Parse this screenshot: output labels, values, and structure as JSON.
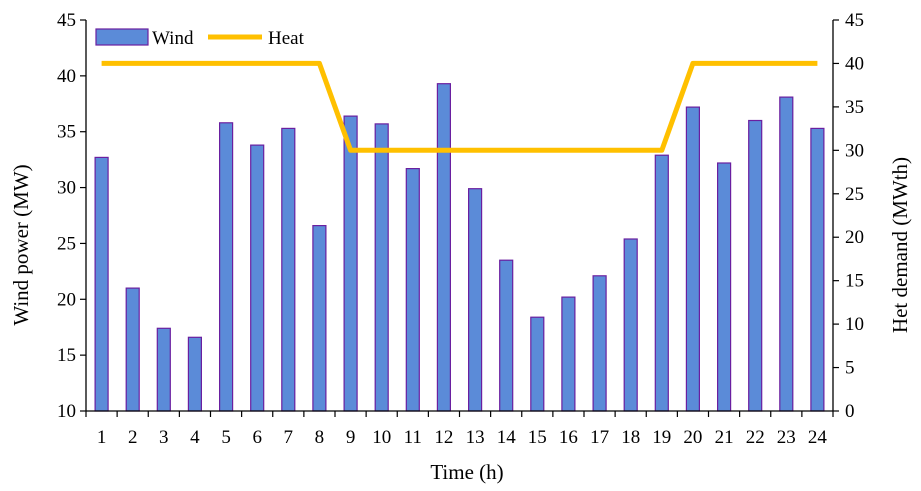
{
  "chart_data": {
    "type": "bar",
    "categories": [
      "1",
      "2",
      "3",
      "4",
      "5",
      "6",
      "7",
      "8",
      "9",
      "10",
      "11",
      "12",
      "13",
      "14",
      "15",
      "16",
      "17",
      "18",
      "19",
      "20",
      "21",
      "22",
      "23",
      "24"
    ],
    "series": [
      {
        "name": "Wind",
        "type": "bar",
        "axis": "left",
        "color": "#5b8bd8",
        "edge_color": "#6a1fa0",
        "values": [
          32.7,
          21.0,
          17.4,
          16.6,
          35.8,
          33.8,
          35.3,
          26.6,
          36.4,
          35.7,
          31.7,
          39.3,
          29.9,
          23.5,
          18.4,
          20.2,
          22.1,
          25.4,
          32.9,
          37.2,
          32.2,
          36.0,
          38.1,
          35.3
        ]
      },
      {
        "name": "Heat",
        "type": "line",
        "axis": "right",
        "color": "#ffc000",
        "values": [
          40,
          40,
          40,
          40,
          40,
          40,
          40,
          40,
          30,
          30,
          30,
          30,
          30,
          30,
          30,
          30,
          30,
          30,
          30,
          40,
          40,
          40,
          40,
          40
        ]
      }
    ],
    "xlabel": "Time  (h)",
    "ylabel": "Wind power (MW)",
    "y2label": "Het demand (MWth)",
    "ylim": [
      10,
      45
    ],
    "y2lim": [
      0,
      45
    ],
    "yticks": [
      10,
      15,
      20,
      25,
      30,
      35,
      40,
      45
    ],
    "y2ticks": [
      0,
      5,
      10,
      15,
      20,
      25,
      30,
      35,
      40,
      45
    ],
    "grid": false,
    "legend": {
      "placement": "top-left",
      "orientation": "horizontal",
      "entries": [
        "Wind",
        "Heat"
      ]
    }
  }
}
